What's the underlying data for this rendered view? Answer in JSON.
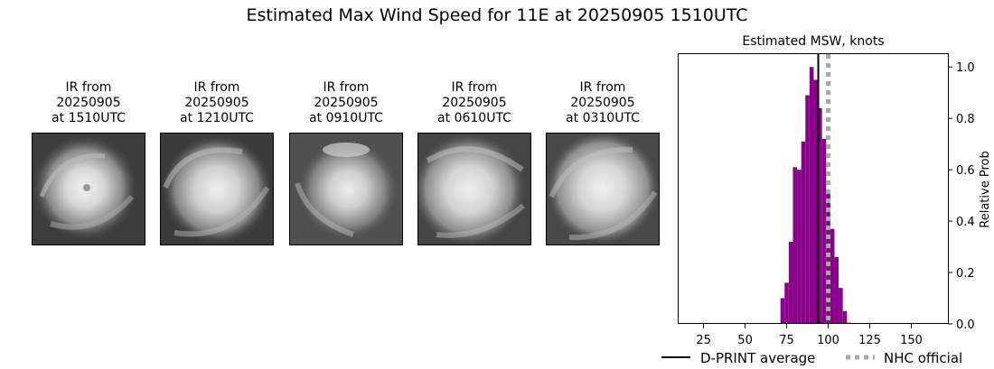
{
  "suptitle": "Estimated Max Wind Speed for 11E at 20250905 1510UTC",
  "ir_panels": [
    {
      "caption": [
        "IR from",
        "20250905",
        "at 1510UTC"
      ]
    },
    {
      "caption": [
        "IR from",
        "20250905",
        "at 1210UTC"
      ]
    },
    {
      "caption": [
        "IR from",
        "20250905",
        "at 0910UTC"
      ]
    },
    {
      "caption": [
        "IR from",
        "20250905",
        "at 0610UTC"
      ]
    },
    {
      "caption": [
        "IR from",
        "20250905",
        "at 0310UTC"
      ]
    }
  ],
  "chart_data": {
    "type": "bar",
    "title": "Estimated MSW, knots",
    "xlabel": "",
    "ylabel": "Relative Prob",
    "xlim": [
      10,
      172
    ],
    "ylim": [
      0,
      1.05
    ],
    "xticks": [
      25,
      50,
      75,
      100,
      125,
      150
    ],
    "yticks": [
      0.0,
      0.2,
      0.4,
      0.6,
      0.8,
      1.0
    ],
    "y_axis_side": "right",
    "bar_color": "#8b008b",
    "bin_width": 2.5,
    "bins": [
      {
        "x": 15,
        "y": 0.003
      },
      {
        "x": 17.5,
        "y": 0.003
      },
      {
        "x": 20,
        "y": 0.003
      },
      {
        "x": 22.5,
        "y": 0.003
      },
      {
        "x": 25,
        "y": 0.003
      },
      {
        "x": 27.5,
        "y": 0.003
      },
      {
        "x": 30,
        "y": 0.003
      },
      {
        "x": 32.5,
        "y": 0.003
      },
      {
        "x": 35,
        "y": 0.003
      },
      {
        "x": 37.5,
        "y": 0.003
      },
      {
        "x": 40,
        "y": 0.003
      },
      {
        "x": 42.5,
        "y": 0.003
      },
      {
        "x": 45,
        "y": 0.003
      },
      {
        "x": 47.5,
        "y": 0.003
      },
      {
        "x": 50,
        "y": 0.003
      },
      {
        "x": 52.5,
        "y": 0.003
      },
      {
        "x": 55,
        "y": 0.003
      },
      {
        "x": 57.5,
        "y": 0.003
      },
      {
        "x": 60,
        "y": 0.003
      },
      {
        "x": 62.5,
        "y": 0.003
      },
      {
        "x": 65,
        "y": 0.003
      },
      {
        "x": 67.5,
        "y": 0.003
      },
      {
        "x": 70,
        "y": 0.003
      },
      {
        "x": 72.5,
        "y": 0.1
      },
      {
        "x": 75,
        "y": 0.16
      },
      {
        "x": 77.5,
        "y": 0.32
      },
      {
        "x": 80,
        "y": 0.61
      },
      {
        "x": 82.5,
        "y": 0.6
      },
      {
        "x": 85,
        "y": 0.71
      },
      {
        "x": 87.5,
        "y": 0.89
      },
      {
        "x": 90,
        "y": 1.0
      },
      {
        "x": 92.5,
        "y": 0.95
      },
      {
        "x": 95,
        "y": 0.84
      },
      {
        "x": 97.5,
        "y": 0.72
      },
      {
        "x": 100,
        "y": 0.52
      },
      {
        "x": 102.5,
        "y": 0.37
      },
      {
        "x": 105,
        "y": 0.26
      },
      {
        "x": 107.5,
        "y": 0.14
      },
      {
        "x": 110,
        "y": 0.05
      },
      {
        "x": 112.5,
        "y": 0.005
      },
      {
        "x": 115,
        "y": 0.003
      },
      {
        "x": 117.5,
        "y": 0.003
      },
      {
        "x": 120,
        "y": 0.003
      },
      {
        "x": 122.5,
        "y": 0.003
      },
      {
        "x": 125,
        "y": 0.003
      },
      {
        "x": 127.5,
        "y": 0.003
      },
      {
        "x": 130,
        "y": 0.003
      },
      {
        "x": 132.5,
        "y": 0.003
      },
      {
        "x": 135,
        "y": 0.003
      },
      {
        "x": 137.5,
        "y": 0.003
      },
      {
        "x": 140,
        "y": 0.003
      },
      {
        "x": 142.5,
        "y": 0.003
      },
      {
        "x": 145,
        "y": 0.003
      },
      {
        "x": 147.5,
        "y": 0.003
      },
      {
        "x": 150,
        "y": 0.003
      },
      {
        "x": 152.5,
        "y": 0.003
      },
      {
        "x": 155,
        "y": 0.003
      },
      {
        "x": 157.5,
        "y": 0.003
      },
      {
        "x": 160,
        "y": 0.003
      },
      {
        "x": 162.5,
        "y": 0.003
      },
      {
        "x": 165,
        "y": 0.003
      }
    ],
    "lines": [
      {
        "name": "D-PRINT average",
        "x": 94,
        "color": "#000000",
        "style": "solid"
      },
      {
        "name": "NHC official",
        "x": 100,
        "color": "#a9a9a9",
        "style": "dotted"
      }
    ],
    "legend_placement": "bottom"
  }
}
